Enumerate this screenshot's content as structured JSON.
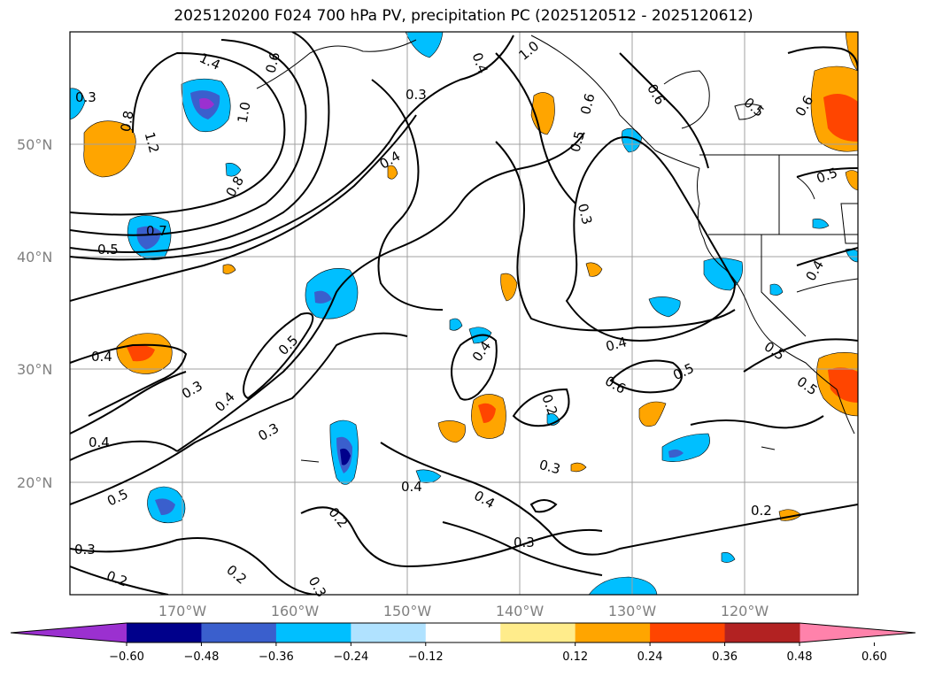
{
  "title": "2025120200 F024 700 hPa PV, precipitation PC (2025120512 - 2025120612)",
  "axes": {
    "lat_labels": [
      "50°N",
      "40°N",
      "30°N",
      "20°N"
    ],
    "lon_labels": [
      "170°W",
      "160°W",
      "150°W",
      "140°W",
      "130°W",
      "120°W"
    ]
  },
  "contour_labels": [
    "1.4",
    "0.6",
    "1.0",
    "1.0",
    "0.4",
    "0.6",
    "0.8",
    "1.2",
    "0.3",
    "0.5",
    "0.6",
    "0.5",
    "0.8",
    "0.4",
    "0.7",
    "0.5",
    "0.3",
    "0.6",
    "0.5",
    "0.4",
    "0.4",
    "0.5",
    "0.3",
    "0.4",
    "0.4",
    "0.3",
    "0.4",
    "0.6",
    "0.5",
    "0.5",
    "0.4",
    "0.5",
    "0.3",
    "0.2",
    "0.3",
    "0.4",
    "0.4",
    "0.5",
    "0.2",
    "0.2",
    "0.3",
    "0.3",
    "0.2",
    "0.2",
    "0.3"
  ],
  "colorbar": {
    "ticks": [
      "−0.60",
      "−0.48",
      "−0.36",
      "−0.24",
      "−0.12",
      "0.12",
      "0.24",
      "0.36",
      "0.48",
      "0.60"
    ],
    "colors": [
      "#9b30d0",
      "#00008b",
      "#3a5fcd",
      "#00bfff",
      "#b0e2ff",
      "#ffffff",
      "#ffec8b",
      "#ffa500",
      "#ff4500",
      "#b22222",
      "#ff82ab"
    ]
  }
}
